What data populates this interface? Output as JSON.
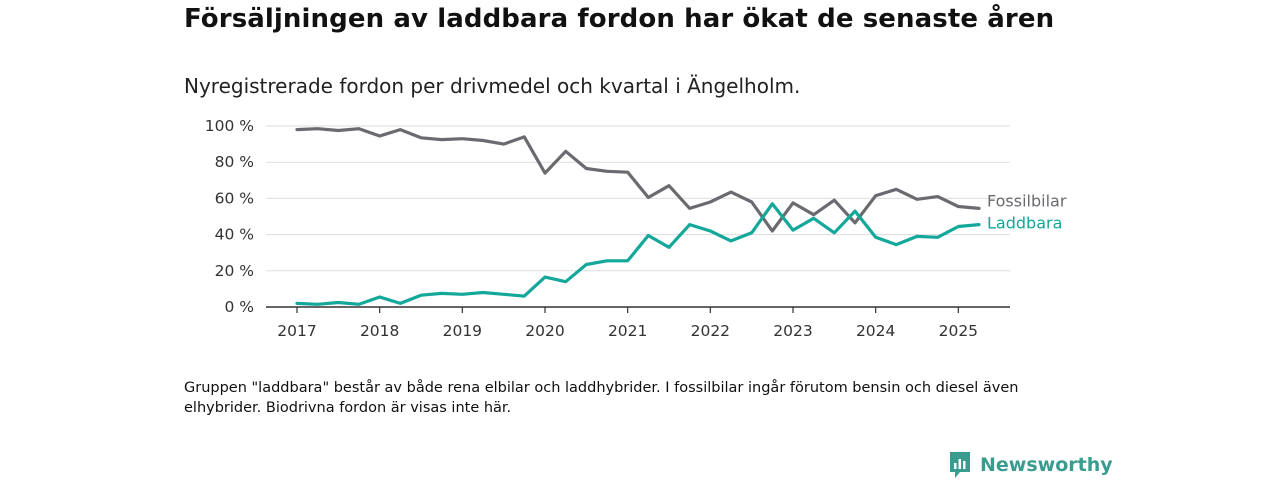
{
  "title": "Försäljningen av laddbara fordon har ökat de senaste åren",
  "subtitle": "Nyregistrerade fordon per drivmedel och kvartal i Ängelholm.",
  "note": "Gruppen \"laddbara\" består av både rena elbilar och laddhybrider. I fossilbilar ingår förutom bensin och diesel även elhybrider. Biodrivna fordon är visas inte här.",
  "brand": {
    "name": "Newsworthy",
    "icon": "newsworthy-logo-icon"
  },
  "colors": {
    "fossil": "#6b6a70",
    "laddbara": "#13a89a",
    "grid": "#dddddd",
    "axis": "#333333"
  },
  "chart_data": {
    "type": "line",
    "x_label": "",
    "y_label": "",
    "y_range": [
      0,
      100
    ],
    "y_ticks": [
      "0 %",
      "20 %",
      "40 %",
      "60 %",
      "80 %",
      "100 %"
    ],
    "y_tick_values": [
      0,
      20,
      40,
      60,
      80,
      100
    ],
    "x_ticks": [
      "2017",
      "2018",
      "2019",
      "2020",
      "2021",
      "2022",
      "2023",
      "2024",
      "2025"
    ],
    "x_tick_values": [
      2017,
      2018,
      2019,
      2020,
      2021,
      2022,
      2023,
      2024,
      2025
    ],
    "x_range": [
      2016.625,
      2025.625
    ],
    "grid": true,
    "legend": "direct labels at line ends",
    "x": [
      2017.0,
      2017.25,
      2017.5,
      2017.75,
      2018.0,
      2018.25,
      2018.5,
      2018.75,
      2019.0,
      2019.25,
      2019.5,
      2019.75,
      2020.0,
      2020.25,
      2020.5,
      2020.75,
      2021.0,
      2021.25,
      2021.5,
      2021.75,
      2022.0,
      2022.25,
      2022.5,
      2022.75,
      2023.0,
      2023.25,
      2023.5,
      2023.75,
      2024.0,
      2024.25,
      2024.5,
      2024.75,
      2025.0,
      2025.25
    ],
    "series": [
      {
        "name": "Fossilbilar",
        "color": "#6b6a70",
        "values": [
          98,
          98.5,
          97.5,
          98.5,
          94.5,
          98,
          93.5,
          92.5,
          93,
          92,
          90,
          94,
          74,
          86,
          76.5,
          75,
          74.5,
          60.5,
          67,
          54.5,
          58,
          63.5,
          58,
          42,
          57.5,
          51,
          59,
          46.5,
          61.5,
          65,
          59.5,
          61,
          55.5,
          54.5
        ]
      },
      {
        "name": "Laddbara",
        "color": "#13a89a",
        "values": [
          2,
          1.5,
          2.5,
          1.5,
          5.5,
          2,
          6.5,
          7.5,
          7,
          8,
          7,
          6,
          16.5,
          14,
          23.5,
          25.5,
          25.5,
          39.5,
          33,
          45.5,
          42,
          36.5,
          41,
          57,
          42.5,
          49,
          41,
          53,
          38.5,
          34.5,
          39,
          38.5,
          44.5,
          45.5
        ]
      }
    ]
  }
}
